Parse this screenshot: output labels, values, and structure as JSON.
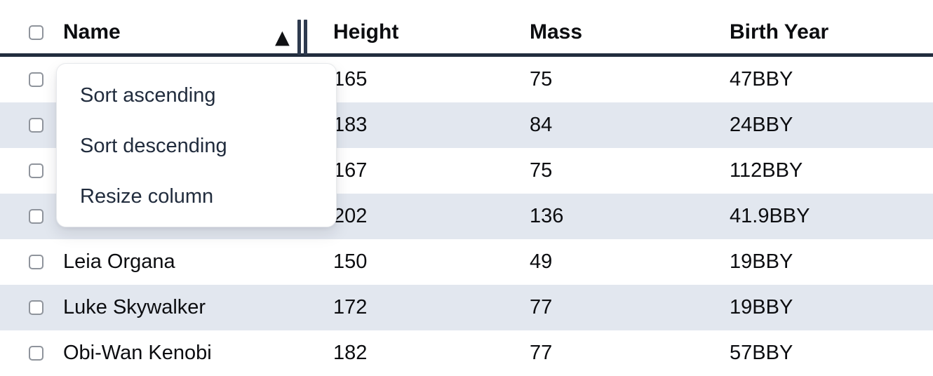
{
  "table": {
    "columns": [
      {
        "label": "Name"
      },
      {
        "label": "Height"
      },
      {
        "label": "Mass"
      },
      {
        "label": "Birth Year"
      }
    ],
    "sort": {
      "column": "Name",
      "direction": "ascending",
      "icon": "▲"
    },
    "rows": [
      {
        "name": "",
        "height": "165",
        "mass": "75",
        "birth_year": "47BBY"
      },
      {
        "name": "",
        "height": "183",
        "mass": "84",
        "birth_year": "24BBY"
      },
      {
        "name": "",
        "height": "167",
        "mass": "75",
        "birth_year": "112BBY"
      },
      {
        "name": "",
        "height": "202",
        "mass": "136",
        "birth_year": "41.9BBY"
      },
      {
        "name": "Leia Organa",
        "height": "150",
        "mass": "49",
        "birth_year": "19BBY"
      },
      {
        "name": "Luke Skywalker",
        "height": "172",
        "mass": "77",
        "birth_year": "19BBY"
      },
      {
        "name": "Obi-Wan Kenobi",
        "height": "182",
        "mass": "77",
        "birth_year": "57BBY"
      }
    ]
  },
  "menu": {
    "items": [
      {
        "label": "Sort ascending"
      },
      {
        "label": "Sort descending"
      },
      {
        "label": "Resize column"
      }
    ]
  },
  "colors": {
    "header_border": "#222d3e",
    "row_stripe": "#e2e7ef",
    "text": "#0c0d10",
    "menu_text": "#212c3d",
    "checkbox_border": "#8f949c",
    "resize_handle": "#2e3a4e"
  }
}
